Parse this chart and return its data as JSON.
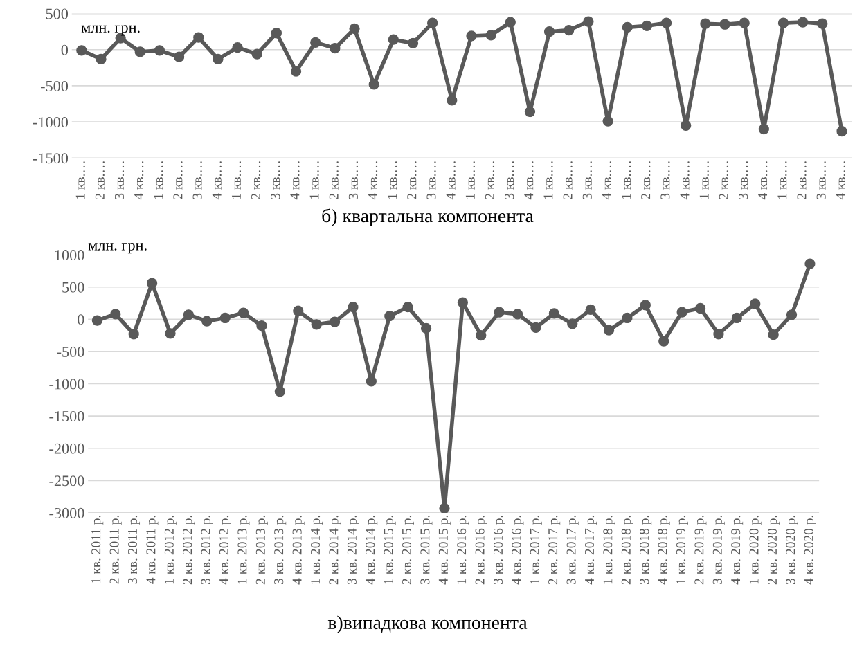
{
  "chart_data": [
    {
      "type": "line",
      "title": "б) квартальна компонента",
      "annotations": [
        "млн. грн."
      ],
      "categories": [
        "1 кв.…",
        "2 кв.…",
        "3 кв.…",
        "4 кв.…",
        "1 кв.…",
        "2 кв.…",
        "3 кв.…",
        "4 кв.…",
        "1 кв.…",
        "2 кв.…",
        "3 кв.…",
        "4 кв.…",
        "1 кв.…",
        "2 кв.…",
        "3 кв.…",
        "4 кв.…",
        "1 кв.…",
        "2 кв.…",
        "3 кв.…",
        "4 кв.…",
        "1 кв.…",
        "2 кв.…",
        "3 кв.…",
        "4 кв.…",
        "1 кв.…",
        "2 кв.…",
        "3 кв.…",
        "4 кв.…",
        "1 кв.…",
        "2 кв.…",
        "3 кв.…",
        "4 кв.…",
        "1 кв.…",
        "2 кв.…",
        "3 кв.…",
        "4 кв.…",
        "1 кв.…",
        "2 кв.…",
        "3 кв.…",
        "4 кв.…"
      ],
      "series": [
        {
          "color": "#595959",
          "values": [
            -10,
            -130,
            160,
            -30,
            -10,
            -100,
            170,
            -130,
            30,
            -60,
            230,
            -300,
            100,
            20,
            290,
            -480,
            140,
            90,
            370,
            -700,
            190,
            200,
            380,
            -860,
            250,
            270,
            390,
            -990,
            310,
            330,
            370,
            -1050,
            360,
            350,
            370,
            -1100,
            370,
            380,
            360,
            -1130
          ]
        }
      ],
      "ylim": [
        -1500,
        500
      ],
      "yticks": [
        -1500,
        -1000,
        -500,
        0,
        500
      ],
      "grid": "y",
      "marker": "circle"
    },
    {
      "type": "line",
      "title": "в)випадкова компонента",
      "annotations": [
        "млн. грн."
      ],
      "categories": [
        "1 кв. 2011 р.",
        "2 кв. 2011 р.",
        "3 кв. 2011 р.",
        "4 кв. 2011 р.",
        "1 кв. 2012 р.",
        "2 кв. 2012 р.",
        "3 кв. 2012 р.",
        "4 кв. 2012 р.",
        "1 кв. 2013 р.",
        "2 кв. 2013 р.",
        "3 кв. 2013 р.",
        "4 кв. 2013 р.",
        "1 кв. 2014 р.",
        "2 кв. 2014 р.",
        "3 кв. 2014 р.",
        "4 кв. 2014 р.",
        "1 кв. 2015 р.",
        "2 кв. 2015 р.",
        "3 кв. 2015 р.",
        "4 кв. 2015 р.",
        "1 кв. 2016 р.",
        "2 кв. 2016 р.",
        "3 кв. 2016 р.",
        "4 кв. 2016 р.",
        "1 кв. 2017 р.",
        "2 кв. 2017 р.",
        "3 кв. 2017 р.",
        "4 кв. 2017 р.",
        "1 кв. 2018 р.",
        "2 кв. 2018 р.",
        "3 кв. 2018 р.",
        "4 кв. 2018 р.",
        "1 кв. 2019 р.",
        "2 кв. 2019 р.",
        "3 кв. 2019 р.",
        "4 кв. 2019 р.",
        "1 кв. 2020 р.",
        "2 кв. 2020 р.",
        "3 кв. 2020 р.",
        "4 кв. 2020 р."
      ],
      "series": [
        {
          "color": "#595959",
          "values": [
            -20,
            80,
            -230,
            560,
            -220,
            70,
            -30,
            20,
            100,
            -100,
            -1120,
            130,
            -80,
            -40,
            190,
            -960,
            50,
            190,
            -140,
            -2930,
            260,
            -250,
            110,
            80,
            -130,
            90,
            -70,
            150,
            -170,
            20,
            220,
            -340,
            110,
            170,
            -230,
            20,
            240,
            -240,
            70,
            860
          ]
        }
      ],
      "ylim": [
        -3000,
        1000
      ],
      "yticks": [
        -3000,
        -2500,
        -2000,
        -1500,
        -1000,
        -500,
        0,
        500,
        1000
      ],
      "grid": "y",
      "marker": "circle"
    }
  ]
}
